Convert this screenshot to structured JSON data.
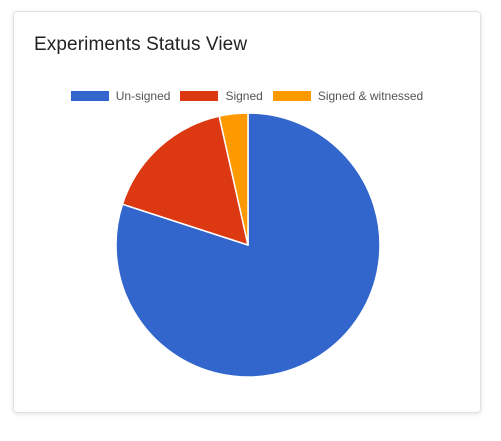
{
  "card": {
    "title": "Experiments Status View"
  },
  "colors": {
    "unsigned": "#3366cc",
    "signed": "#dc3912",
    "signed_witnessed": "#ff9900",
    "slice_border": "#ffffff"
  },
  "chart_data": {
    "type": "pie",
    "title": "",
    "legend_position": "top",
    "series": [
      {
        "name": "Un-signed",
        "value": 80,
        "color": "#3366cc"
      },
      {
        "name": "Signed",
        "value": 16.5,
        "color": "#dc3912"
      },
      {
        "name": "Signed & witnessed",
        "value": 3.5,
        "color": "#ff9900"
      }
    ]
  }
}
